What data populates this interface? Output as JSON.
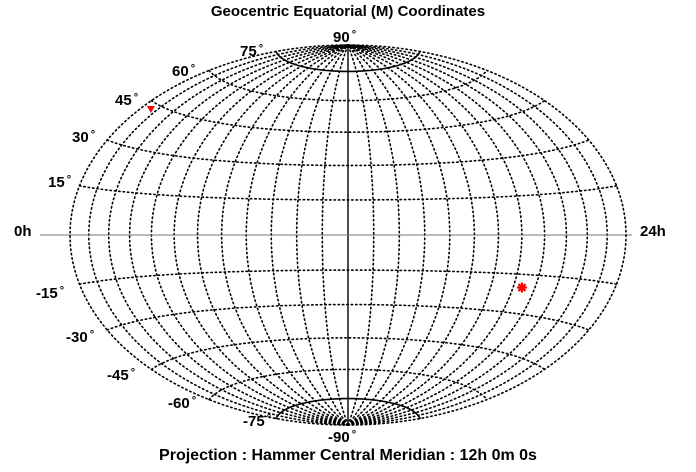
{
  "title": "Geocentric Equatorial (M)  Coordinates",
  "footer": "Projection : Hammer   Central Meridian : 12h 0m 0s",
  "projection": "Hammer",
  "central_meridian": "12h 0m 0s",
  "ra_left_label": "0h",
  "ra_right_label": "24h",
  "degree_symbol": "°",
  "latitude_labels": [
    {
      "value": 90,
      "text": "90"
    },
    {
      "value": 75,
      "text": "75"
    },
    {
      "value": 60,
      "text": "60"
    },
    {
      "value": 45,
      "text": "45"
    },
    {
      "value": 30,
      "text": "30"
    },
    {
      "value": 15,
      "text": "15"
    },
    {
      "value": -15,
      "text": "-15"
    },
    {
      "value": -30,
      "text": "-30"
    },
    {
      "value": -45,
      "text": "-45"
    },
    {
      "value": -60,
      "text": "-60"
    },
    {
      "value": -75,
      "text": "-75"
    },
    {
      "value": -90,
      "text": "-90"
    }
  ],
  "markers": [
    {
      "name": "triangle-marker",
      "shape": "triangle",
      "color": "#ff0000",
      "ra_hours": 0.6,
      "dec_deg": 43
    },
    {
      "name": "star-marker",
      "shape": "star",
      "color": "#ff0000",
      "ra_hours": 19.4,
      "dec_deg": -20
    }
  ],
  "colors": {
    "grid": "#000000",
    "marker": "#ff0000",
    "background": "#ffffff"
  }
}
